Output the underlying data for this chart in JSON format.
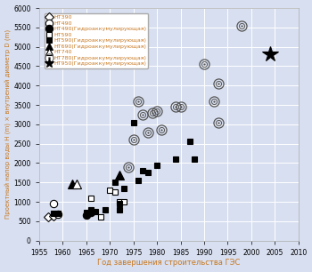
{
  "xlabel": "Год завершения строительства ГЭС",
  "ylabel": "Проектный напор воды H (m) × внутрений диаметр D (m)",
  "xlim": [
    1955,
    2010
  ],
  "ylim": [
    0,
    6000
  ],
  "xticks": [
    1955,
    1960,
    1965,
    1970,
    1975,
    1980,
    1985,
    1990,
    1995,
    2000,
    2005,
    2010
  ],
  "yticks": [
    0,
    500,
    1000,
    1500,
    2000,
    2500,
    3000,
    3500,
    4000,
    4500,
    5000,
    5500,
    6000
  ],
  "background_color": "#d8dff0",
  "text_color": "#c87820",
  "series": {
    "HT390": {
      "label": "HT390",
      "marker": "D",
      "facecolor": "white",
      "edgecolor": "black",
      "size": 5,
      "points": [
        [
          1957,
          620
        ],
        [
          1958,
          630
        ]
      ]
    },
    "HT490": {
      "label": "HT490",
      "marker": "o",
      "facecolor": "white",
      "edgecolor": "black",
      "size": 6,
      "points": [
        [
          1958,
          950
        ],
        [
          1959,
          680
        ]
      ]
    },
    "HT490G": {
      "label": "HT490(Гидроаккумулирующая)",
      "marker": "o",
      "facecolor": "black",
      "edgecolor": "black",
      "size": 6,
      "points": [
        [
          1965,
          650
        ],
        [
          1966,
          720
        ]
      ]
    },
    "HT590": {
      "label": "HT590",
      "marker": "s",
      "facecolor": "white",
      "edgecolor": "black",
      "size": 5,
      "points": [
        [
          1966,
          1100
        ],
        [
          1968,
          600
        ],
        [
          1970,
          1300
        ],
        [
          1971,
          1250
        ],
        [
          1972,
          1000
        ],
        [
          1973,
          1000
        ]
      ]
    },
    "HT590G": {
      "label": "HT590(Гидроаккумулирующая)",
      "marker": "s",
      "facecolor": "black",
      "edgecolor": "black",
      "size": 5,
      "points": [
        [
          1958,
          700
        ],
        [
          1959,
          700
        ],
        [
          1965,
          720
        ],
        [
          1966,
          800
        ],
        [
          1967,
          750
        ],
        [
          1969,
          800
        ],
        [
          1971,
          1500
        ],
        [
          1972,
          950
        ],
        [
          1972,
          800
        ],
        [
          1973,
          1350
        ],
        [
          1975,
          3050
        ],
        [
          1976,
          1550
        ],
        [
          1977,
          1800
        ],
        [
          1978,
          1750
        ],
        [
          1980,
          1950
        ],
        [
          1984,
          2100
        ],
        [
          1987,
          2550
        ],
        [
          1988,
          2100
        ]
      ]
    },
    "HT690G": {
      "label": "HT690(Гидроаккумулирующая)",
      "marker": "^",
      "facecolor": "black",
      "edgecolor": "black",
      "size": 7,
      "points": [
        [
          1962,
          1450
        ],
        [
          1972,
          1700
        ]
      ]
    },
    "HT740": {
      "label": "HT740",
      "marker": "^",
      "facecolor": "white",
      "edgecolor": "black",
      "size": 7,
      "points": [
        [
          1963,
          1450
        ]
      ]
    },
    "HT780G": {
      "label": "HT780(Гидроаккумулирующая)",
      "size": 8,
      "points": [
        [
          1974,
          1900
        ],
        [
          1975,
          2600
        ],
        [
          1976,
          3600
        ],
        [
          1977,
          3250
        ],
        [
          1978,
          2800
        ],
        [
          1979,
          3300
        ],
        [
          1980,
          3350
        ],
        [
          1981,
          2850
        ],
        [
          1984,
          3450
        ],
        [
          1985,
          3450
        ],
        [
          1990,
          4550
        ],
        [
          1992,
          3600
        ],
        [
          1993,
          3050
        ],
        [
          1993,
          4050
        ],
        [
          1998,
          5550
        ]
      ]
    },
    "HT950G": {
      "label": "HT950(Гидроаккумулирующая)",
      "marker": "*",
      "facecolor": "black",
      "edgecolor": "black",
      "size": 13,
      "points": [
        [
          2004,
          4800
        ]
      ]
    }
  }
}
